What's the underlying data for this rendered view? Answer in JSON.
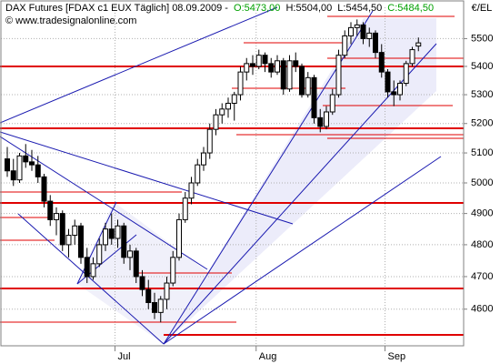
{
  "chart_data": {
    "type": "candlestick",
    "title": "DAX Futures [FDAX c1 EUX  Täglich] 08.09.2009 -",
    "header_open": "O:5473,00",
    "header_high": "H:5504,00",
    "header_low": "L:5454,50",
    "header_close": "C:5484,50",
    "subtitle": "© www.tradesignalonline.com",
    "y_label": "€/EL",
    "log_scale": true,
    "grid": true,
    "up_color": "#ffffff",
    "down_color": "#000000",
    "ylim": [
      4490,
      5615
    ],
    "yticks": [
      4600,
      4700,
      4800,
      4900,
      5000,
      5100,
      5200,
      5300,
      5400,
      5500
    ],
    "categories": [
      null,
      null,
      null,
      null,
      null,
      null,
      null,
      null,
      null,
      null,
      null,
      null,
      null,
      null,
      null,
      null,
      null,
      null,
      "Jul",
      null,
      null,
      null,
      null,
      null,
      null,
      null,
      null,
      null,
      null,
      null,
      null,
      null,
      null,
      null,
      null,
      null,
      null,
      null,
      null,
      null,
      null,
      "Aug",
      null,
      null,
      null,
      null,
      null,
      null,
      null,
      null,
      null,
      null,
      null,
      null,
      null,
      null,
      null,
      null,
      null,
      null,
      null,
      null,
      "Sep",
      null,
      null,
      null,
      null,
      null
    ],
    "open": [
      5080,
      5040,
      5010,
      5090,
      5070,
      5060,
      5020,
      4940,
      4880,
      4900,
      4800,
      4830,
      4860,
      4760,
      4700,
      4740,
      4800,
      4850,
      4820,
      4860,
      4760,
      4780,
      4700,
      4660,
      4620,
      4590,
      4630,
      4680,
      4760,
      4880,
      4950,
      5000,
      5060,
      5100,
      5180,
      5230,
      5250,
      5270,
      5300,
      5380,
      5410,
      5400,
      5440,
      5410,
      5380,
      5420,
      5320,
      5420,
      5400,
      5300,
      5360,
      5220,
      5190,
      5240,
      5300,
      5440,
      5510,
      5540,
      5550,
      5500,
      5520,
      5450,
      5380,
      5310,
      5300,
      5340,
      5410,
      5473
    ],
    "high": [
      5120,
      5080,
      5100,
      5130,
      5110,
      5090,
      5030,
      4960,
      4920,
      4910,
      4850,
      4880,
      4870,
      4790,
      4760,
      4820,
      4870,
      4900,
      4880,
      4870,
      4800,
      4790,
      4720,
      4690,
      4650,
      4640,
      4700,
      4780,
      4900,
      4970,
      5020,
      5080,
      5120,
      5200,
      5250,
      5270,
      5290,
      5310,
      5400,
      5430,
      5440,
      5460,
      5450,
      5430,
      5440,
      5430,
      5440,
      5450,
      5410,
      5380,
      5370,
      5250,
      5260,
      5320,
      5460,
      5530,
      5560,
      5570,
      5560,
      5540,
      5530,
      5480,
      5390,
      5350,
      5350,
      5420,
      5470,
      5504
    ],
    "low": [
      5020,
      4990,
      5000,
      5050,
      5040,
      5000,
      4920,
      4860,
      4830,
      4780,
      4760,
      4800,
      4740,
      4680,
      4690,
      4730,
      4780,
      4800,
      4790,
      4740,
      4720,
      4680,
      4640,
      4600,
      4570,
      4560,
      4600,
      4670,
      4750,
      4870,
      4930,
      4990,
      5040,
      5080,
      5160,
      5200,
      5220,
      5210,
      5280,
      5350,
      5370,
      5390,
      5380,
      5360,
      5370,
      5300,
      5310,
      5380,
      5290,
      5290,
      5200,
      5170,
      5180,
      5230,
      5290,
      5430,
      5480,
      5510,
      5480,
      5470,
      5430,
      5360,
      5290,
      5260,
      5280,
      5330,
      5400,
      5454.5
    ],
    "close": [
      5040,
      5010,
      5090,
      5070,
      5060,
      5020,
      4940,
      4880,
      4900,
      4800,
      4830,
      4860,
      4760,
      4700,
      4740,
      4800,
      4850,
      4820,
      4860,
      4760,
      4780,
      4700,
      4660,
      4620,
      4590,
      4630,
      4680,
      4760,
      4880,
      4950,
      5000,
      5060,
      5100,
      5180,
      5230,
      5250,
      5270,
      5300,
      5380,
      5410,
      5400,
      5440,
      5410,
      5380,
      5420,
      5320,
      5420,
      5400,
      5300,
      5360,
      5220,
      5190,
      5240,
      5300,
      5440,
      5510,
      5540,
      5550,
      5500,
      5520,
      5450,
      5380,
      5310,
      5300,
      5340,
      5410,
      5460,
      5484.5
    ]
  }
}
